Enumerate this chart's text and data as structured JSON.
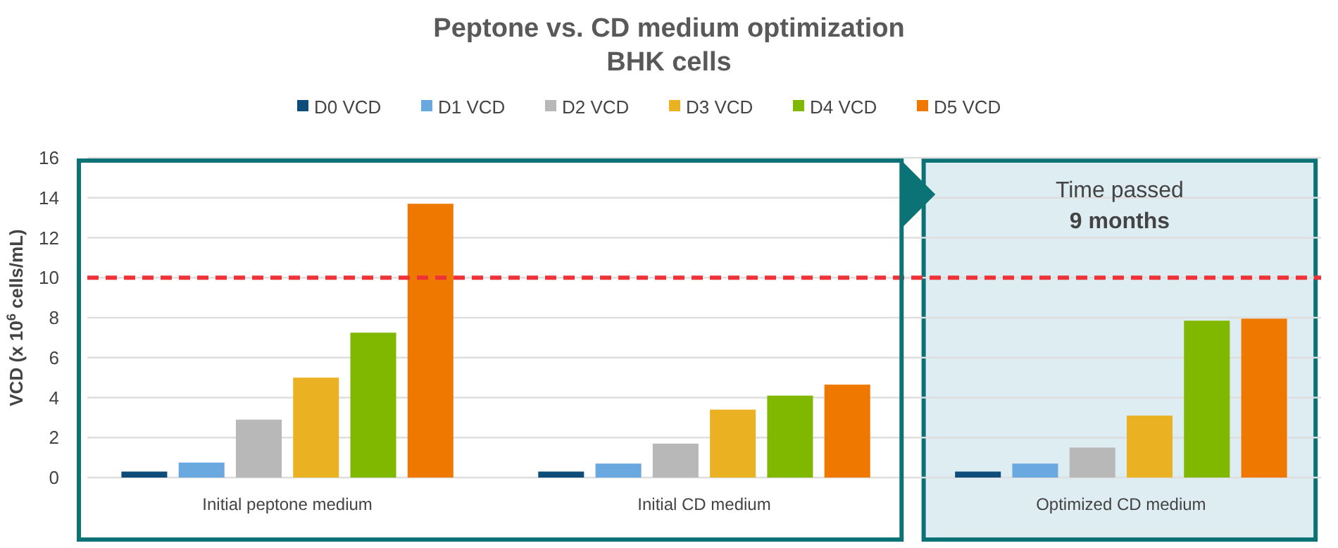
{
  "chart_data": {
    "type": "bar",
    "title": "Peptone vs. CD medium optimization",
    "subtitle": "BHK cells",
    "ylabel": "VCD (x 10$^{6}$ cells/mL)",
    "categories": [
      "Initial peptone medium",
      "Initial CD medium",
      "Optimized CD medium"
    ],
    "series": [
      {
        "name": "D0 VCD",
        "color": "#0e4c7a",
        "values": [
          0.3,
          0.3,
          0.3
        ]
      },
      {
        "name": "D1 VCD",
        "color": "#6aa8e0",
        "values": [
          0.75,
          0.7,
          0.7
        ]
      },
      {
        "name": "D2 VCD",
        "color": "#b8b8b8",
        "values": [
          2.9,
          1.7,
          1.5
        ]
      },
      {
        "name": "D3 VCD",
        "color": "#eab122",
        "values": [
          5.0,
          3.4,
          3.1
        ]
      },
      {
        "name": "D4 VCD",
        "color": "#80b800",
        "values": [
          7.25,
          4.1,
          7.85
        ]
      },
      {
        "name": "D5 VCD",
        "color": "#ee7800",
        "values": [
          13.7,
          4.65,
          7.95
        ]
      }
    ],
    "ylim": [
      0,
      16
    ],
    "yticks": [
      0,
      2,
      4,
      6,
      8,
      10,
      12,
      14,
      16
    ],
    "grid": "y",
    "legend": "top",
    "ref_lines": [
      {
        "axis": "y",
        "value": 10,
        "color": "#ee3338",
        "line_style": "dashed"
      }
    ],
    "bands": [
      {
        "axis": "x",
        "from": "Optimized CD medium",
        "to": "Optimized CD medium",
        "color": "#deedf2"
      }
    ],
    "annotations": [
      "Time passed",
      "9 months"
    ]
  }
}
